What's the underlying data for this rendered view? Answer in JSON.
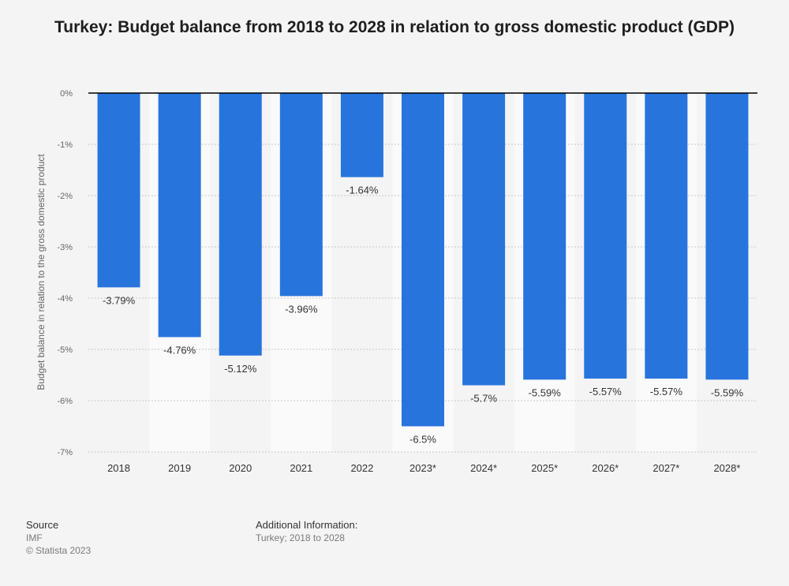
{
  "chart_data": {
    "type": "bar",
    "title": "Turkey: Budget balance from 2018 to 2028 in relation to gross domestic product (GDP)",
    "xlabel": "",
    "ylabel": "Budget balance in relation to the gross domestic product",
    "ylim": [
      -7,
      0
    ],
    "yticks": [
      "0%",
      "-1%",
      "-2%",
      "-3%",
      "-4%",
      "-5%",
      "-6%",
      "-7%"
    ],
    "grid": true,
    "categories": [
      "2018",
      "2019",
      "2020",
      "2021",
      "2022",
      "2023*",
      "2024*",
      "2025*",
      "2026*",
      "2027*",
      "2028*"
    ],
    "values": [
      -3.79,
      -4.76,
      -5.12,
      -3.96,
      -1.64,
      -6.5,
      -5.7,
      -5.59,
      -5.57,
      -5.57,
      -5.59
    ],
    "labels": [
      "-3.79%",
      "-4.76%",
      "-5.12%",
      "-3.96%",
      "-1.64%",
      "-6.5%",
      "-5.7%",
      "-5.59%",
      "-5.57%",
      "-5.57%",
      "-5.59%"
    ],
    "colors": {
      "bar": "#2874dd",
      "grid": "#c8c8c8",
      "band": "#fafafa"
    }
  },
  "footer": {
    "source_heading": "Source",
    "source_name": "IMF",
    "copyright": "© Statista 2023",
    "additional_heading": "Additional Information:",
    "additional_text": "Turkey; 2018 to 2028"
  }
}
